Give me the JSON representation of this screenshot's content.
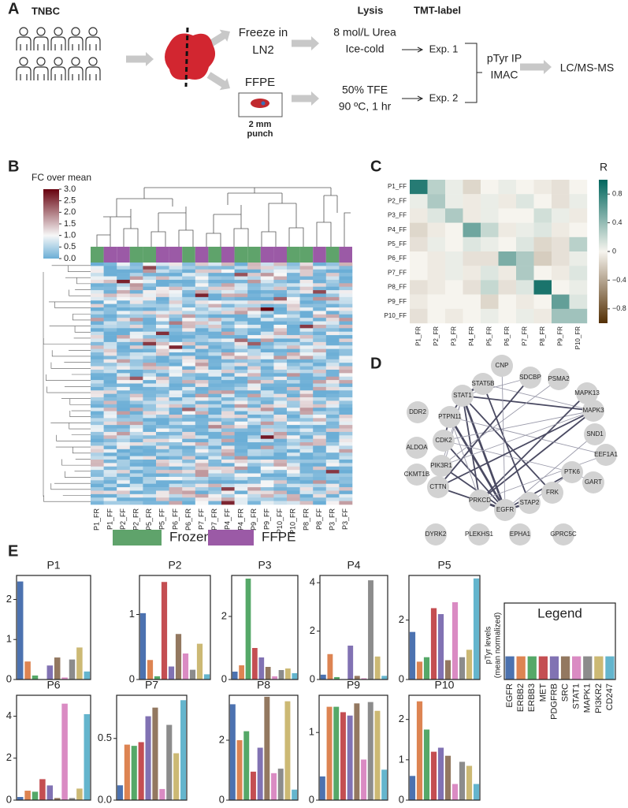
{
  "panels": [
    "A",
    "B",
    "C",
    "D",
    "E"
  ],
  "workflow": {
    "cohort": "TNBC",
    "freeze": [
      "Freeze in",
      "LN2"
    ],
    "ffpe": "FFPE",
    "punch": [
      "2 mm",
      "punch"
    ],
    "lysis": "Lysis",
    "tmt": "TMT-label",
    "urea": [
      "8 mol/L Urea",
      "Ice-cold"
    ],
    "tfe": [
      "50% TFE",
      "90 ºC, 1 hr"
    ],
    "exp1": "Exp. 1",
    "exp2": "Exp. 2",
    "ip": [
      "pTyr IP",
      "IMAC"
    ],
    "ms": "LC/MS-MS"
  },
  "heatmap": {
    "colorbar_title": "FC over mean",
    "colorbar_lim": [
      0,
      3
    ],
    "colorbar_ticks": [
      {
        "value": 3,
        "label": "3.0"
      },
      {
        "value": 2.5,
        "label": "2.5"
      },
      {
        "value": 2,
        "label": "2.0"
      },
      {
        "value": 1.5,
        "label": "1.5"
      },
      {
        "value": 1,
        "label": "1.0"
      },
      {
        "value": 0.5,
        "label": "0.5"
      },
      {
        "value": 0,
        "label": "0.0"
      }
    ],
    "columns": [
      "P1_FR",
      "P1_FF",
      "P2_FF",
      "P2_FR",
      "P5_FR",
      "P5_FF",
      "P6_FF",
      "P6_FR",
      "P7_FF",
      "P7_FR",
      "P4_FF",
      "P4_FR",
      "P9_FR",
      "P9_FF",
      "P10_FF",
      "P10_FR",
      "P8_FR",
      "P8_FF",
      "P3_FR",
      "P3_FF"
    ],
    "legend": [
      {
        "name": "Frozen",
        "color": "#5fa36b"
      },
      {
        "name": "FFPE",
        "color": "#9b5aa6"
      }
    ]
  },
  "correlation": {
    "title": "R",
    "rows": [
      "P1_FF",
      "P2_FF",
      "P3_FF",
      "P4_FF",
      "P5_FF",
      "P6_FF",
      "P7_FF",
      "P8_FF",
      "P9_FF",
      "P10_FF"
    ],
    "columns": [
      "P1_FR",
      "P2_FR",
      "P3_FR",
      "P4_FR",
      "P5_FR",
      "P6_FR",
      "P7_FR",
      "P8_FR",
      "P9_FR",
      "P10_FR"
    ],
    "clim": [
      -1,
      1
    ],
    "ticks": [
      {
        "value": 0.8,
        "label": "0.8"
      },
      {
        "value": 0.4,
        "label": "0.4"
      },
      {
        "value": 0,
        "label": "0"
      },
      {
        "value": -0.4,
        "label": "−0.4"
      },
      {
        "value": -0.8,
        "label": "−0.8"
      }
    ],
    "matrix": [
      [
        0.85,
        0.25,
        0.05,
        -0.15,
        0.0,
        0.05,
        0.0,
        -0.05,
        -0.1,
        0.0
      ],
      [
        0.05,
        0.3,
        0.05,
        -0.05,
        0.05,
        -0.05,
        0.1,
        0.0,
        -0.1,
        0.05
      ],
      [
        -0.05,
        0.1,
        0.3,
        -0.05,
        0.05,
        0.0,
        0.0,
        0.15,
        0.05,
        -0.05
      ],
      [
        -0.15,
        -0.05,
        0.0,
        0.55,
        0.2,
        -0.05,
        0.05,
        0.1,
        -0.05,
        0.0
      ],
      [
        -0.1,
        0.05,
        0.0,
        0.1,
        0.05,
        0.0,
        0.1,
        -0.15,
        -0.1,
        0.25
      ],
      [
        0.0,
        -0.05,
        0.05,
        -0.1,
        -0.1,
        0.5,
        0.3,
        -0.2,
        -0.1,
        0.05
      ],
      [
        0.0,
        -0.05,
        0.05,
        -0.05,
        0.1,
        -0.05,
        0.3,
        0.0,
        -0.05,
        0.1
      ],
      [
        -0.1,
        -0.05,
        0.0,
        -0.1,
        0.2,
        -0.1,
        0.1,
        0.9,
        0.0,
        0.05
      ],
      [
        -0.05,
        0.0,
        0.0,
        0.0,
        -0.15,
        0.0,
        -0.05,
        0.0,
        0.6,
        0.1
      ],
      [
        -0.1,
        0.0,
        -0.05,
        0.0,
        0.05,
        0.0,
        0.05,
        -0.05,
        0.35,
        0.35
      ]
    ]
  },
  "network": {
    "nodes": [
      "CNP",
      "STAT5B",
      "SDCBP",
      "PSMA2",
      "MAPK13",
      "STAT1",
      "MAPK3",
      "DDR2",
      "PTPN11",
      "SND1",
      "CDK2",
      "EEF1A1",
      "ALDOA",
      "PIK3R1",
      "PTK6",
      "GART",
      "CKMT1B",
      "FRK",
      "CTTN",
      "PRKCD",
      "STAP2",
      "EGFR",
      "DYRK2",
      "PLEKHS1",
      "EPHA1",
      "GPRC5C"
    ]
  },
  "chart_data": [
    {
      "type": "bar",
      "title": "P1",
      "values": [
        2.45,
        0.45,
        0.1,
        0,
        0.35,
        0.55,
        0.05,
        0.5,
        0.8,
        0.2
      ],
      "ylim": [
        0,
        2.6
      ],
      "yticks": [
        0,
        1,
        2
      ],
      "colors": [
        "#4c72b0",
        "#dd8452",
        "#55a868",
        "#c44e52",
        "#8172b3",
        "#937860",
        "#da8bc3",
        "#8c8c8c",
        "#ccb974",
        "#64b5cd"
      ]
    },
    {
      "type": "bar",
      "title": "P2",
      "values": [
        1.02,
        0.3,
        0.05,
        1.5,
        0.2,
        0.7,
        0.4,
        0.15,
        0.55,
        0.08
      ],
      "ylim": [
        0,
        1.6
      ],
      "yticks": [
        0,
        1
      ],
      "colors": [
        "#4c72b0",
        "#dd8452",
        "#55a868",
        "#c44e52",
        "#8172b3",
        "#937860",
        "#da8bc3",
        "#8c8c8c",
        "#ccb974",
        "#64b5cd"
      ]
    },
    {
      "type": "bar",
      "title": "P3",
      "values": [
        0.25,
        0.45,
        3.2,
        1.0,
        0.7,
        0.4,
        0.1,
        0.3,
        0.35,
        0.2
      ],
      "ylim": [
        0,
        3.3
      ],
      "yticks": [
        0,
        2
      ],
      "colors": [
        "#4c72b0",
        "#dd8452",
        "#55a868",
        "#c44e52",
        "#8172b3",
        "#937860",
        "#da8bc3",
        "#8c8c8c",
        "#ccb974",
        "#64b5cd"
      ]
    },
    {
      "type": "bar",
      "title": "P4",
      "values": [
        0.2,
        1.05,
        0.1,
        0,
        1.4,
        0.15,
        0.05,
        4.1,
        0.95,
        0.15
      ],
      "ylim": [
        0,
        4.3
      ],
      "yticks": [
        0,
        2,
        4
      ],
      "colors": [
        "#4c72b0",
        "#dd8452",
        "#55a868",
        "#c44e52",
        "#8172b3",
        "#937860",
        "#da8bc3",
        "#8c8c8c",
        "#ccb974",
        "#64b5cd"
      ]
    },
    {
      "type": "bar",
      "title": "P5",
      "values": [
        1.6,
        0.6,
        0.75,
        2.4,
        2.2,
        0.65,
        2.6,
        0.75,
        1.0,
        3.4
      ],
      "ylim": [
        0,
        3.5
      ],
      "yticks": [
        0,
        2
      ],
      "colors": [
        "#4c72b0",
        "#dd8452",
        "#55a868",
        "#c44e52",
        "#8172b3",
        "#937860",
        "#da8bc3",
        "#8c8c8c",
        "#ccb974",
        "#64b5cd"
      ]
    },
    {
      "type": "bar",
      "title": "P6",
      "values": [
        0.15,
        0.45,
        0.4,
        1.0,
        0.7,
        0.1,
        4.6,
        0.1,
        0.55,
        4.1
      ],
      "ylim": [
        0,
        5
      ],
      "yticks": [
        0,
        2,
        4
      ],
      "colors": [
        "#4c72b0",
        "#dd8452",
        "#55a868",
        "#c44e52",
        "#8172b3",
        "#937860",
        "#da8bc3",
        "#8c8c8c",
        "#ccb974",
        "#64b5cd"
      ]
    },
    {
      "type": "bar",
      "title": "P7",
      "values": [
        0.12,
        0.45,
        0.44,
        0.47,
        0.68,
        0.75,
        0.09,
        0.61,
        0.38,
        0.81
      ],
      "ylim": [
        0,
        0.85
      ],
      "yticks": [
        {
          "value": 0,
          "label": "0.0"
        },
        0.5
      ],
      "colors": [
        "#4c72b0",
        "#dd8452",
        "#55a868",
        "#c44e52",
        "#8172b3",
        "#937860",
        "#da8bc3",
        "#8c8c8c",
        "#ccb974",
        "#64b5cd"
      ]
    },
    {
      "type": "bar",
      "title": "P8",
      "values": [
        3.2,
        2.0,
        2.3,
        0.95,
        1.75,
        3.45,
        0.9,
        1.05,
        3.3,
        0.35
      ],
      "ylim": [
        0,
        3.5
      ],
      "yticks": [
        0,
        2
      ],
      "colors": [
        "#4c72b0",
        "#dd8452",
        "#55a868",
        "#c44e52",
        "#8172b3",
        "#937860",
        "#da8bc3",
        "#8c8c8c",
        "#ccb974",
        "#64b5cd"
      ]
    },
    {
      "type": "bar",
      "title": "P9",
      "values": [
        0.35,
        1.38,
        1.38,
        1.3,
        1.25,
        1.43,
        0.6,
        1.45,
        1.32,
        0.45
      ],
      "ylim": [
        0,
        1.55
      ],
      "yticks": [
        0,
        1
      ],
      "colors": [
        "#4c72b0",
        "#dd8452",
        "#55a868",
        "#c44e52",
        "#8172b3",
        "#937860",
        "#da8bc3",
        "#8c8c8c",
        "#ccb974",
        "#64b5cd"
      ]
    },
    {
      "type": "bar",
      "title": "P10",
      "values": [
        0.6,
        2.45,
        1.75,
        1.2,
        1.3,
        1.1,
        0.4,
        0.95,
        0.85,
        0.4
      ],
      "ylim": [
        0,
        2.6
      ],
      "yticks": [
        0,
        1,
        2
      ],
      "colors": [
        "#4c72b0",
        "#dd8452",
        "#55a868",
        "#c44e52",
        "#8172b3",
        "#937860",
        "#da8bc3",
        "#8c8c8c",
        "#ccb974",
        "#64b5cd"
      ]
    },
    {
      "type": "bar",
      "title": "Legend",
      "ylabel": [
        "pTyr levels",
        "(mean normalized)"
      ],
      "categories": [
        "EGFR",
        "ERBB2",
        "ERBB3",
        "MET",
        "PDGFRB",
        "SRC",
        "STAT1",
        "MAPK1",
        "PI3KR2",
        "CD247"
      ],
      "values": [
        1,
        1,
        1,
        1,
        1,
        1,
        1,
        1,
        1,
        1
      ],
      "ylim": [
        0,
        3.3
      ],
      "yticks": [],
      "colors": [
        "#4c72b0",
        "#dd8452",
        "#55a868",
        "#c44e52",
        "#8172b3",
        "#937860",
        "#da8bc3",
        "#8c8c8c",
        "#ccb974",
        "#64b5cd"
      ]
    }
  ]
}
